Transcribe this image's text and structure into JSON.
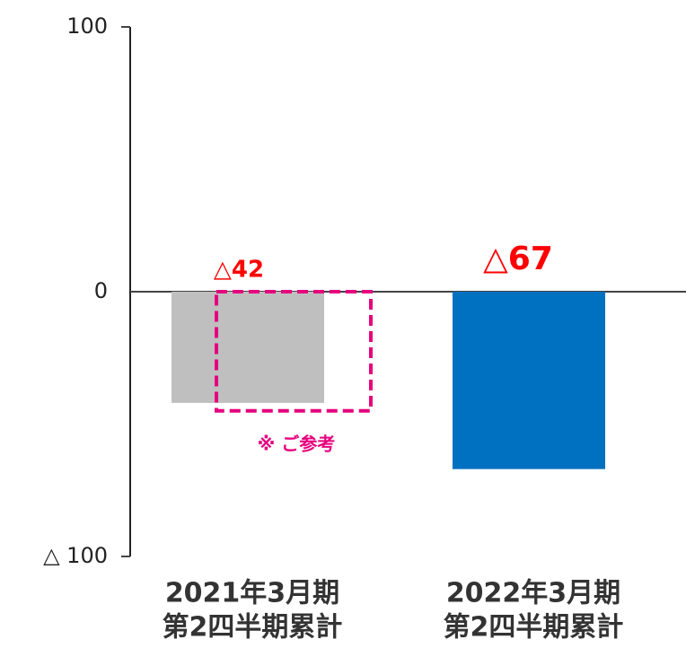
{
  "chart_data": {
    "type": "bar",
    "categories": [
      [
        "2021年3月期",
        "第2四半期累計"
      ],
      [
        "2022年3月期",
        "第2四半期累計"
      ]
    ],
    "values": [
      -42,
      -67
    ],
    "value_labels": [
      "△42",
      "△67"
    ],
    "colors": [
      "#bfbfbf",
      "#0070c0"
    ],
    "value_label_color": "#ff0000",
    "ylim": [
      -100,
      100
    ],
    "yticks": [
      {
        "value": -100,
        "label": "△ 100"
      },
      0,
      100
    ],
    "annotations": [
      {
        "text": "※ ご参考",
        "value": -45,
        "color": "#e6007e"
      }
    ]
  }
}
